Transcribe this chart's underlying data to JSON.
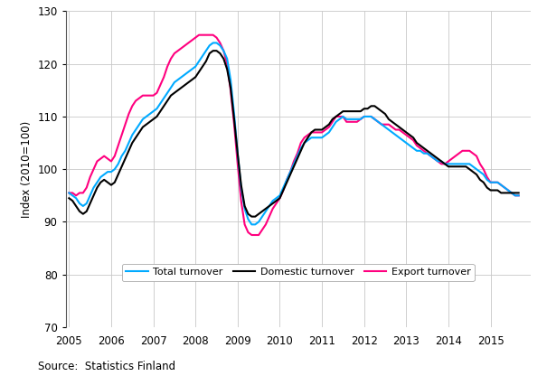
{
  "title": "",
  "ylabel": "Index (2010=100)",
  "source": "Source:  Statistics Finland",
  "ylim": [
    70,
    130
  ],
  "yticks": [
    70,
    80,
    90,
    100,
    110,
    120,
    130
  ],
  "xlim": [
    2004.92,
    2015.95
  ],
  "xtick_positions": [
    2005,
    2006,
    2007,
    2008,
    2009,
    2010,
    2011,
    2012,
    2013,
    2014,
    2015
  ],
  "xtick_labels": [
    "2005",
    "2006",
    "2007",
    "2008",
    "2009",
    "2010",
    "2011",
    "2012",
    "2013",
    "2014",
    "2015"
  ],
  "legend_labels": [
    "Total turnover",
    "Domestic turnover",
    "Export turnover"
  ],
  "colors": {
    "total": "#00AAFF",
    "domestic": "#000000",
    "export": "#FF007F"
  },
  "total_turnover": {
    "x": [
      2005.0,
      2005.083,
      2005.167,
      2005.25,
      2005.333,
      2005.417,
      2005.5,
      2005.583,
      2005.667,
      2005.75,
      2005.833,
      2005.917,
      2006.0,
      2006.083,
      2006.167,
      2006.25,
      2006.333,
      2006.417,
      2006.5,
      2006.583,
      2006.667,
      2006.75,
      2006.833,
      2006.917,
      2007.0,
      2007.083,
      2007.167,
      2007.25,
      2007.333,
      2007.417,
      2007.5,
      2007.583,
      2007.667,
      2007.75,
      2007.833,
      2007.917,
      2008.0,
      2008.083,
      2008.167,
      2008.25,
      2008.333,
      2008.417,
      2008.5,
      2008.583,
      2008.667,
      2008.75,
      2008.833,
      2008.917,
      2009.0,
      2009.083,
      2009.167,
      2009.25,
      2009.333,
      2009.417,
      2009.5,
      2009.583,
      2009.667,
      2009.75,
      2009.833,
      2009.917,
      2010.0,
      2010.083,
      2010.167,
      2010.25,
      2010.333,
      2010.417,
      2010.5,
      2010.583,
      2010.667,
      2010.75,
      2010.833,
      2010.917,
      2011.0,
      2011.083,
      2011.167,
      2011.25,
      2011.333,
      2011.417,
      2011.5,
      2011.583,
      2011.667,
      2011.75,
      2011.833,
      2011.917,
      2012.0,
      2012.083,
      2012.167,
      2012.25,
      2012.333,
      2012.417,
      2012.5,
      2012.583,
      2012.667,
      2012.75,
      2012.833,
      2012.917,
      2013.0,
      2013.083,
      2013.167,
      2013.25,
      2013.333,
      2013.417,
      2013.5,
      2013.583,
      2013.667,
      2013.75,
      2013.833,
      2013.917,
      2014.0,
      2014.083,
      2014.167,
      2014.25,
      2014.333,
      2014.417,
      2014.5,
      2014.583,
      2014.667,
      2014.75,
      2014.833,
      2014.917,
      2015.0,
      2015.083,
      2015.167,
      2015.25,
      2015.333,
      2015.417,
      2015.5,
      2015.583,
      2015.667
    ],
    "y": [
      95.5,
      95.0,
      94.5,
      93.5,
      93.0,
      93.5,
      95.0,
      96.5,
      97.5,
      98.5,
      99.0,
      99.5,
      99.5,
      100.0,
      101.0,
      102.5,
      103.5,
      105.0,
      106.5,
      107.5,
      108.5,
      109.5,
      110.0,
      110.5,
      111.0,
      111.5,
      112.5,
      113.5,
      114.5,
      115.5,
      116.5,
      117.0,
      117.5,
      118.0,
      118.5,
      119.0,
      119.5,
      120.5,
      121.5,
      122.5,
      123.5,
      124.0,
      124.0,
      123.5,
      122.5,
      121.0,
      117.0,
      110.5,
      103.0,
      96.5,
      92.5,
      90.5,
      89.5,
      89.5,
      90.0,
      91.0,
      92.0,
      93.0,
      94.0,
      94.5,
      95.0,
      96.5,
      98.0,
      99.5,
      101.0,
      102.5,
      104.0,
      105.0,
      105.5,
      106.0,
      106.0,
      106.0,
      106.0,
      106.5,
      107.0,
      108.0,
      109.0,
      109.5,
      110.0,
      109.5,
      109.5,
      109.5,
      109.5,
      109.5,
      110.0,
      110.0,
      110.0,
      109.5,
      109.0,
      108.5,
      108.0,
      107.5,
      107.0,
      106.5,
      106.0,
      105.5,
      105.0,
      104.5,
      104.0,
      103.5,
      103.5,
      103.0,
      103.0,
      102.5,
      102.0,
      101.5,
      101.5,
      101.0,
      101.0,
      101.0,
      101.0,
      101.0,
      101.0,
      101.0,
      101.0,
      100.5,
      100.0,
      99.5,
      99.0,
      98.0,
      97.5,
      97.5,
      97.5,
      97.0,
      96.5,
      96.0,
      95.5,
      95.0,
      95.0
    ]
  },
  "domestic_turnover": {
    "x": [
      2005.0,
      2005.083,
      2005.167,
      2005.25,
      2005.333,
      2005.417,
      2005.5,
      2005.583,
      2005.667,
      2005.75,
      2005.833,
      2005.917,
      2006.0,
      2006.083,
      2006.167,
      2006.25,
      2006.333,
      2006.417,
      2006.5,
      2006.583,
      2006.667,
      2006.75,
      2006.833,
      2006.917,
      2007.0,
      2007.083,
      2007.167,
      2007.25,
      2007.333,
      2007.417,
      2007.5,
      2007.583,
      2007.667,
      2007.75,
      2007.833,
      2007.917,
      2008.0,
      2008.083,
      2008.167,
      2008.25,
      2008.333,
      2008.417,
      2008.5,
      2008.583,
      2008.667,
      2008.75,
      2008.833,
      2008.917,
      2009.0,
      2009.083,
      2009.167,
      2009.25,
      2009.333,
      2009.417,
      2009.5,
      2009.583,
      2009.667,
      2009.75,
      2009.833,
      2009.917,
      2010.0,
      2010.083,
      2010.167,
      2010.25,
      2010.333,
      2010.417,
      2010.5,
      2010.583,
      2010.667,
      2010.75,
      2010.833,
      2010.917,
      2011.0,
      2011.083,
      2011.167,
      2011.25,
      2011.333,
      2011.417,
      2011.5,
      2011.583,
      2011.667,
      2011.75,
      2011.833,
      2011.917,
      2012.0,
      2012.083,
      2012.167,
      2012.25,
      2012.333,
      2012.417,
      2012.5,
      2012.583,
      2012.667,
      2012.75,
      2012.833,
      2012.917,
      2013.0,
      2013.083,
      2013.167,
      2013.25,
      2013.333,
      2013.417,
      2013.5,
      2013.583,
      2013.667,
      2013.75,
      2013.833,
      2013.917,
      2014.0,
      2014.083,
      2014.167,
      2014.25,
      2014.333,
      2014.417,
      2014.5,
      2014.583,
      2014.667,
      2014.75,
      2014.833,
      2014.917,
      2015.0,
      2015.083,
      2015.167,
      2015.25,
      2015.333,
      2015.417,
      2015.5,
      2015.583,
      2015.667
    ],
    "y": [
      94.5,
      94.0,
      93.0,
      92.0,
      91.5,
      92.0,
      93.5,
      95.0,
      96.5,
      97.5,
      98.0,
      97.5,
      97.0,
      97.5,
      99.0,
      100.5,
      102.0,
      103.5,
      105.0,
      106.0,
      107.0,
      108.0,
      108.5,
      109.0,
      109.5,
      110.0,
      111.0,
      112.0,
      113.0,
      114.0,
      114.5,
      115.0,
      115.5,
      116.0,
      116.5,
      117.0,
      117.5,
      118.5,
      119.5,
      120.5,
      122.0,
      122.5,
      122.5,
      122.0,
      121.0,
      119.0,
      115.5,
      109.5,
      103.0,
      97.0,
      93.0,
      91.5,
      91.0,
      91.0,
      91.5,
      92.0,
      92.5,
      93.0,
      93.5,
      94.0,
      94.5,
      96.0,
      97.5,
      99.0,
      100.5,
      102.0,
      103.5,
      105.0,
      106.0,
      107.0,
      107.5,
      107.5,
      107.5,
      108.0,
      108.5,
      109.5,
      110.0,
      110.5,
      111.0,
      111.0,
      111.0,
      111.0,
      111.0,
      111.0,
      111.5,
      111.5,
      112.0,
      112.0,
      111.5,
      111.0,
      110.5,
      109.5,
      109.0,
      108.5,
      108.0,
      107.5,
      107.0,
      106.5,
      106.0,
      105.0,
      104.5,
      104.0,
      103.5,
      103.0,
      102.5,
      102.0,
      101.5,
      101.0,
      100.5,
      100.5,
      100.5,
      100.5,
      100.5,
      100.5,
      100.0,
      99.5,
      99.0,
      98.0,
      97.5,
      96.5,
      96.0,
      96.0,
      96.0,
      95.5,
      95.5,
      95.5,
      95.5,
      95.5,
      95.5
    ]
  },
  "export_turnover": {
    "x": [
      2005.0,
      2005.083,
      2005.167,
      2005.25,
      2005.333,
      2005.417,
      2005.5,
      2005.583,
      2005.667,
      2005.75,
      2005.833,
      2005.917,
      2006.0,
      2006.083,
      2006.167,
      2006.25,
      2006.333,
      2006.417,
      2006.5,
      2006.583,
      2006.667,
      2006.75,
      2006.833,
      2006.917,
      2007.0,
      2007.083,
      2007.167,
      2007.25,
      2007.333,
      2007.417,
      2007.5,
      2007.583,
      2007.667,
      2007.75,
      2007.833,
      2007.917,
      2008.0,
      2008.083,
      2008.167,
      2008.25,
      2008.333,
      2008.417,
      2008.5,
      2008.583,
      2008.667,
      2008.75,
      2008.833,
      2008.917,
      2009.0,
      2009.083,
      2009.167,
      2009.25,
      2009.333,
      2009.417,
      2009.5,
      2009.583,
      2009.667,
      2009.75,
      2009.833,
      2009.917,
      2010.0,
      2010.083,
      2010.167,
      2010.25,
      2010.333,
      2010.417,
      2010.5,
      2010.583,
      2010.667,
      2010.75,
      2010.833,
      2010.917,
      2011.0,
      2011.083,
      2011.167,
      2011.25,
      2011.333,
      2011.417,
      2011.5,
      2011.583,
      2011.667,
      2011.75,
      2011.833,
      2011.917,
      2012.0,
      2012.083,
      2012.167,
      2012.25,
      2012.333,
      2012.417,
      2012.5,
      2012.583,
      2012.667,
      2012.75,
      2012.833,
      2012.917,
      2013.0,
      2013.083,
      2013.167,
      2013.25,
      2013.333,
      2013.417,
      2013.5,
      2013.583,
      2013.667,
      2013.75,
      2013.833,
      2013.917,
      2014.0,
      2014.083,
      2014.167,
      2014.25,
      2014.333,
      2014.417,
      2014.5,
      2014.583,
      2014.667,
      2014.75,
      2014.833,
      2014.917,
      2015.0,
      2015.083,
      2015.167,
      2015.25,
      2015.333,
      2015.417,
      2015.5,
      2015.583,
      2015.667
    ],
    "y": [
      95.5,
      95.5,
      95.0,
      95.5,
      95.5,
      96.5,
      98.5,
      100.0,
      101.5,
      102.0,
      102.5,
      102.0,
      101.5,
      102.5,
      104.5,
      106.5,
      108.5,
      110.5,
      112.0,
      113.0,
      113.5,
      114.0,
      114.0,
      114.0,
      114.0,
      114.5,
      116.0,
      117.5,
      119.5,
      121.0,
      122.0,
      122.5,
      123.0,
      123.5,
      124.0,
      124.5,
      125.0,
      125.5,
      125.5,
      125.5,
      125.5,
      125.5,
      125.0,
      124.0,
      122.5,
      120.0,
      115.0,
      108.5,
      101.0,
      94.0,
      89.5,
      88.0,
      87.5,
      87.5,
      87.5,
      88.5,
      89.5,
      91.0,
      92.5,
      93.5,
      94.5,
      96.0,
      98.0,
      99.5,
      101.5,
      103.0,
      105.0,
      106.0,
      106.5,
      107.0,
      107.0,
      107.0,
      107.0,
      107.5,
      108.0,
      109.0,
      110.0,
      110.0,
      110.0,
      109.0,
      109.0,
      109.0,
      109.0,
      109.5,
      110.0,
      110.0,
      110.0,
      109.5,
      109.0,
      108.5,
      108.5,
      108.5,
      108.0,
      107.5,
      107.5,
      107.0,
      106.5,
      106.0,
      105.5,
      104.5,
      104.0,
      103.5,
      103.0,
      102.5,
      102.0,
      101.5,
      101.0,
      101.0,
      101.5,
      102.0,
      102.5,
      103.0,
      103.5,
      103.5,
      103.5,
      103.0,
      102.5,
      101.0,
      100.0,
      98.5,
      97.5,
      97.5,
      97.5,
      97.0,
      96.5,
      96.0,
      95.5,
      95.0,
      95.0
    ]
  }
}
